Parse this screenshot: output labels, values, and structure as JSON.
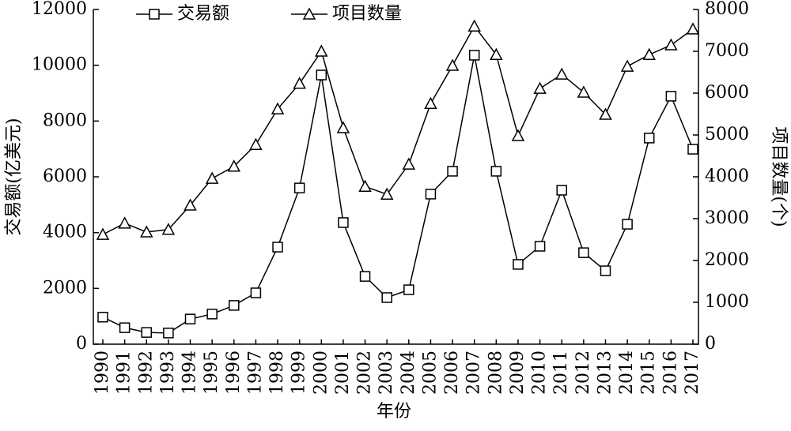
{
  "chart_data": {
    "type": "line",
    "x_label": "年份",
    "y_label": "交易额(亿美元)",
    "y2_label": "项目数量(个)",
    "categories": [
      "1990",
      "1991",
      "1992",
      "1993",
      "1994",
      "1995",
      "1996",
      "1997",
      "1998",
      "1999",
      "2000",
      "2001",
      "2002",
      "2003",
      "2004",
      "2005",
      "2006",
      "2007",
      "2008",
      "2009",
      "2010",
      "2011",
      "2012",
      "2013",
      "2014",
      "2015",
      "2016",
      "2017"
    ],
    "series": [
      {
        "name": "交易额",
        "color": "#000000",
        "marker": "square",
        "axis": "y",
        "values": [
          970,
          590,
          420,
          400,
          900,
          1080,
          1390,
          1840,
          3480,
          5600,
          9650,
          4360,
          2430,
          1670,
          1950,
          5380,
          6200,
          10360,
          6200,
          2860,
          3510,
          5520,
          3280,
          2630,
          4300,
          7390,
          8890,
          6990
        ]
      },
      {
        "name": "项目数量",
        "color": "#000000",
        "marker": "triangle",
        "axis": "y2",
        "values": [
          2620,
          2890,
          2680,
          2740,
          3320,
          3960,
          4250,
          4770,
          5620,
          6230,
          7000,
          5170,
          3770,
          3580,
          4300,
          5750,
          6660,
          7600,
          6920,
          4980,
          6110,
          6450,
          6020,
          5490,
          6640,
          6920,
          7150,
          7530
        ]
      }
    ],
    "ylim": [
      0,
      12000
    ],
    "yticks": [
      0,
      2000,
      4000,
      6000,
      8000,
      10000,
      12000
    ],
    "y2lim": [
      0,
      8000
    ],
    "y2ticks": [
      0,
      1000,
      2000,
      3000,
      4000,
      5000,
      6000,
      7000,
      8000
    ],
    "grid": false
  }
}
